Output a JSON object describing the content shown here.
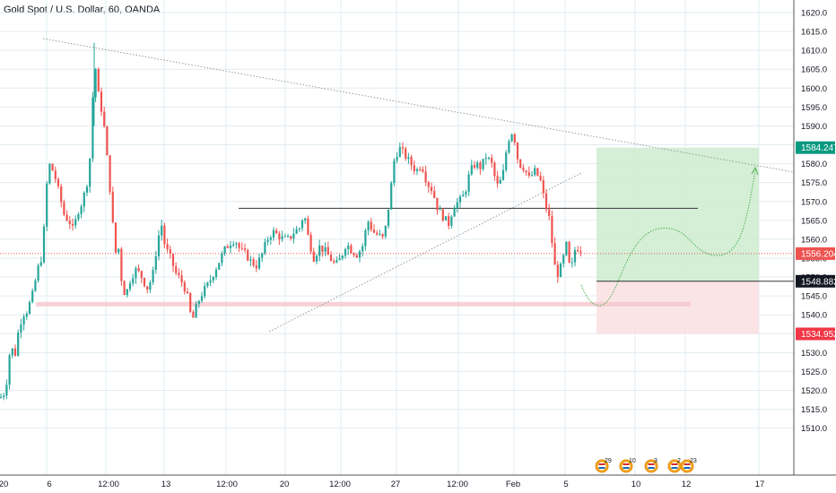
{
  "header": {
    "title": "Gold Spot / U.S. Dollar, 60, OANDA"
  },
  "colors": {
    "up": "#26a69a",
    "down": "#ef5350",
    "grid": "#e1ecf2",
    "axis_line": "#555555",
    "target_zone": "#cdeccf",
    "stop_zone": "#fbe1e3",
    "support_band": "#f4c7cc",
    "resistance_line": "#333333",
    "trend_line": "#999999",
    "last_price_line": "#ef5350",
    "projection_line": "#4caf50"
  },
  "chart_data": {
    "type": "candlestick",
    "symbol": "Gold Spot / U.S. Dollar",
    "interval": "60",
    "source": "OANDA",
    "ylim": [
      1505,
      1623
    ],
    "y_ticks": [
      1510.0,
      1515.0,
      1520.0,
      1525.0,
      1530.0,
      1535.0,
      1540.0,
      1545.0,
      1550.0,
      1555.0,
      1560.0,
      1565.0,
      1570.0,
      1575.0,
      1580.0,
      1585.0,
      1590.0,
      1595.0,
      1600.0,
      1605.0,
      1610.0,
      1615.0,
      1620.0
    ],
    "x_ticks": [
      "20",
      "6",
      "12:00",
      "13",
      "12:00",
      "20",
      "12:00",
      "27",
      "12:00",
      "Feb",
      "5",
      "10",
      "12",
      "17"
    ],
    "price_path": [
      {
        "t": 0,
        "p": 1518
      },
      {
        "t": 4,
        "p": 1519
      },
      {
        "t": 8,
        "p": 1523
      },
      {
        "t": 12,
        "p": 1533
      },
      {
        "t": 16,
        "p": 1528
      },
      {
        "t": 20,
        "p": 1535
      },
      {
        "t": 25,
        "p": 1540
      },
      {
        "t": 30,
        "p": 1541
      },
      {
        "t": 36,
        "p": 1545
      },
      {
        "t": 42,
        "p": 1552
      },
      {
        "t": 46,
        "p": 1555
      },
      {
        "t": 50,
        "p": 1565
      },
      {
        "t": 53,
        "p": 1578
      },
      {
        "t": 56,
        "p": 1580
      },
      {
        "t": 62,
        "p": 1576
      },
      {
        "t": 68,
        "p": 1570
      },
      {
        "t": 72,
        "p": 1566
      },
      {
        "t": 77,
        "p": 1565
      },
      {
        "t": 82,
        "p": 1562
      },
      {
        "t": 86,
        "p": 1567
      },
      {
        "t": 92,
        "p": 1570
      },
      {
        "t": 98,
        "p": 1576
      },
      {
        "t": 102,
        "p": 1586
      },
      {
        "t": 105,
        "p": 1611
      },
      {
        "t": 108,
        "p": 1600
      },
      {
        "t": 112,
        "p": 1596
      },
      {
        "t": 116,
        "p": 1590
      },
      {
        "t": 120,
        "p": 1580
      },
      {
        "t": 124,
        "p": 1570
      },
      {
        "t": 128,
        "p": 1556
      },
      {
        "t": 132,
        "p": 1558
      },
      {
        "t": 136,
        "p": 1548
      },
      {
        "t": 140,
        "p": 1545
      },
      {
        "t": 146,
        "p": 1550
      },
      {
        "t": 152,
        "p": 1552
      },
      {
        "t": 158,
        "p": 1550
      },
      {
        "t": 164,
        "p": 1547
      },
      {
        "t": 170,
        "p": 1550
      },
      {
        "t": 176,
        "p": 1560
      },
      {
        "t": 180,
        "p": 1564
      },
      {
        "t": 184,
        "p": 1558
      },
      {
        "t": 190,
        "p": 1555
      },
      {
        "t": 196,
        "p": 1551
      },
      {
        "t": 202,
        "p": 1549
      },
      {
        "t": 208,
        "p": 1546
      },
      {
        "t": 214,
        "p": 1538
      },
      {
        "t": 220,
        "p": 1543
      },
      {
        "t": 226,
        "p": 1546
      },
      {
        "t": 232,
        "p": 1548
      },
      {
        "t": 238,
        "p": 1551
      },
      {
        "t": 244,
        "p": 1554
      },
      {
        "t": 250,
        "p": 1557
      },
      {
        "t": 256,
        "p": 1559
      },
      {
        "t": 262,
        "p": 1560
      },
      {
        "t": 268,
        "p": 1557
      },
      {
        "t": 274,
        "p": 1556
      },
      {
        "t": 280,
        "p": 1554
      },
      {
        "t": 286,
        "p": 1553
      },
      {
        "t": 292,
        "p": 1556
      },
      {
        "t": 298,
        "p": 1560
      },
      {
        "t": 304,
        "p": 1562
      },
      {
        "t": 310,
        "p": 1561
      },
      {
        "t": 316,
        "p": 1560
      },
      {
        "t": 322,
        "p": 1560
      },
      {
        "t": 328,
        "p": 1562
      },
      {
        "t": 334,
        "p": 1563
      },
      {
        "t": 339,
        "p": 1567
      },
      {
        "t": 344,
        "p": 1560
      },
      {
        "t": 350,
        "p": 1555
      },
      {
        "t": 356,
        "p": 1558
      },
      {
        "t": 362,
        "p": 1557
      },
      {
        "t": 368,
        "p": 1555
      },
      {
        "t": 374,
        "p": 1553
      },
      {
        "t": 380,
        "p": 1555
      },
      {
        "t": 386,
        "p": 1559
      },
      {
        "t": 392,
        "p": 1557
      },
      {
        "t": 398,
        "p": 1556
      },
      {
        "t": 404,
        "p": 1558
      },
      {
        "t": 410,
        "p": 1565
      },
      {
        "t": 416,
        "p": 1562
      },
      {
        "t": 422,
        "p": 1561
      },
      {
        "t": 428,
        "p": 1560
      },
      {
        "t": 434,
        "p": 1570
      },
      {
        "t": 440,
        "p": 1582
      },
      {
        "t": 446,
        "p": 1584
      },
      {
        "t": 452,
        "p": 1582
      },
      {
        "t": 458,
        "p": 1580
      },
      {
        "t": 464,
        "p": 1578
      },
      {
        "t": 470,
        "p": 1580
      },
      {
        "t": 476,
        "p": 1575
      },
      {
        "t": 482,
        "p": 1573
      },
      {
        "t": 488,
        "p": 1568
      },
      {
        "t": 494,
        "p": 1566
      },
      {
        "t": 500,
        "p": 1564
      },
      {
        "t": 506,
        "p": 1569
      },
      {
        "t": 512,
        "p": 1570
      },
      {
        "t": 518,
        "p": 1572
      },
      {
        "t": 524,
        "p": 1578
      },
      {
        "t": 530,
        "p": 1580
      },
      {
        "t": 536,
        "p": 1579
      },
      {
        "t": 542,
        "p": 1582
      },
      {
        "t": 548,
        "p": 1580
      },
      {
        "t": 554,
        "p": 1574
      },
      {
        "t": 560,
        "p": 1576
      },
      {
        "t": 566,
        "p": 1586
      },
      {
        "t": 572,
        "p": 1589
      },
      {
        "t": 578,
        "p": 1580
      },
      {
        "t": 584,
        "p": 1579
      },
      {
        "t": 590,
        "p": 1576
      },
      {
        "t": 596,
        "p": 1578
      },
      {
        "t": 602,
        "p": 1576
      },
      {
        "t": 608,
        "p": 1569
      },
      {
        "t": 612,
        "p": 1566
      },
      {
        "t": 616,
        "p": 1558
      },
      {
        "t": 620,
        "p": 1550
      },
      {
        "t": 626,
        "p": 1553
      },
      {
        "t": 632,
        "p": 1559
      },
      {
        "t": 636,
        "p": 1550
      },
      {
        "t": 640,
        "p": 1557
      },
      {
        "t": 646,
        "p": 1558
      },
      {
        "t": 650,
        "p": 1556
      }
    ],
    "price_labels": [
      {
        "value": 1584.247,
        "text": "1584.247",
        "color": "#089981"
      },
      {
        "value": 1556.204,
        "text": "1556.204",
        "color": "#ef5350"
      },
      {
        "value": 1548.882,
        "text": "1548.882",
        "color": "#131722"
      },
      {
        "value": 1534.952,
        "text": "1534.952",
        "color": "#f23645"
      }
    ],
    "events": [
      {
        "label": "29",
        "x_date": "Feb 5"
      },
      {
        "label": "10",
        "x_date": "Feb 8"
      },
      {
        "label": "3",
        "x_date": "Feb 10"
      },
      {
        "label": "2",
        "x_date": "Feb 11"
      },
      {
        "label": "23",
        "x_date": "Feb 12"
      }
    ]
  }
}
